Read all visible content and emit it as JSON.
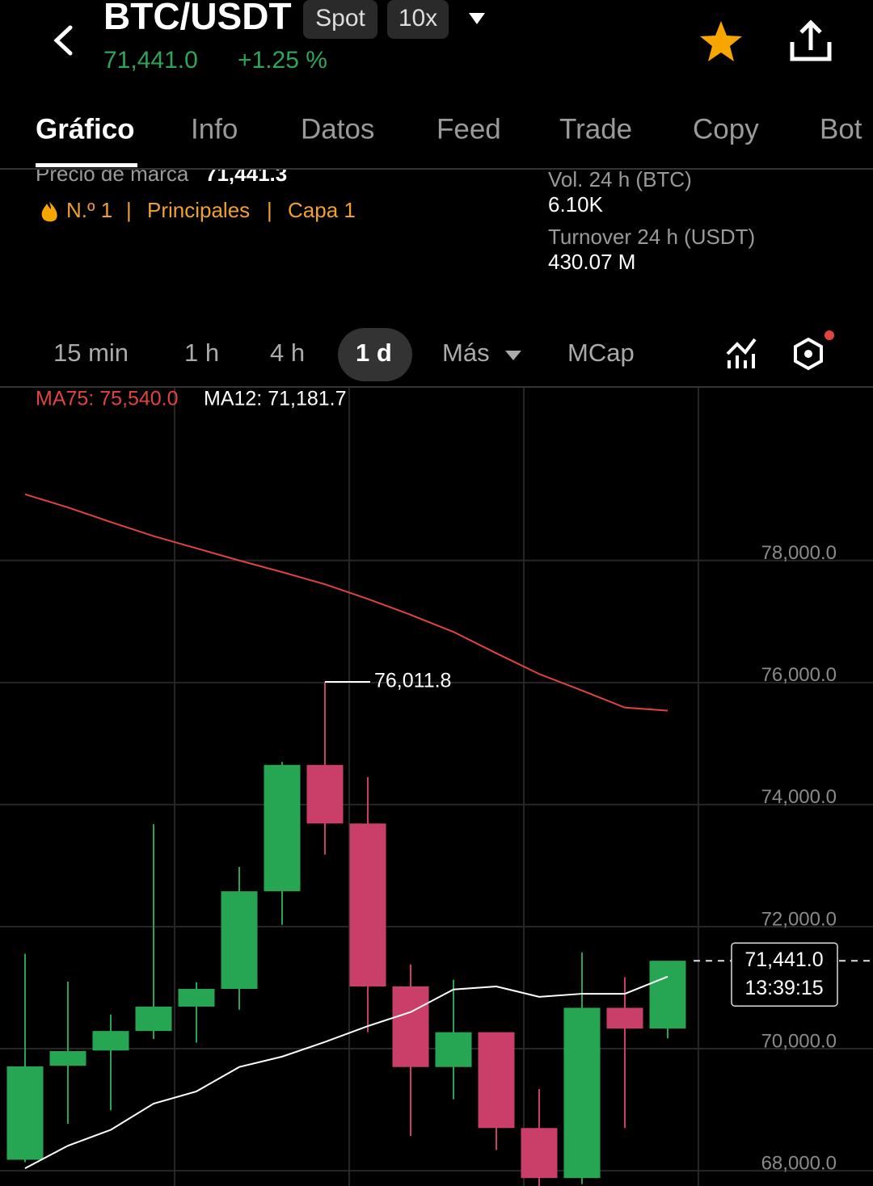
{
  "header": {
    "pair": "BTC/USDT",
    "market": "Spot",
    "leverage": "10x",
    "price": "71,441.0",
    "change": "+1.25 %"
  },
  "tabs": [
    "Gráfico",
    "Info",
    "Datos",
    "Feed",
    "Trade",
    "Copy",
    "Bot"
  ],
  "stats": {
    "mark_label": "Precio de marca",
    "mark_value": "71,441.3",
    "rank": "N.º 1",
    "tags": [
      "Principales",
      "Capa 1"
    ],
    "vol_label": "Vol. 24 h (BTC)",
    "vol_value": "6.10K",
    "turnover_label": "Turnover 24 h (USDT)",
    "turnover_value": "430.07 M"
  },
  "intervals": [
    "15 min",
    "1 h",
    "4 h",
    "1 d",
    "Más",
    "MCap"
  ],
  "chart_data": {
    "type": "candlestick",
    "up_color": "#26a653",
    "down_color": "#c93f69",
    "open": [
      68180,
      69720,
      69970,
      70290,
      70690,
      70980,
      72580,
      74650,
      73690,
      71020,
      69700,
      70270,
      68700,
      67880,
      70670,
      70330
    ],
    "high": [
      71555,
      71100,
      70560,
      73680,
      71090,
      72980,
      74700,
      76011.8,
      74450,
      71380,
      71130,
      70270,
      69340,
      71580,
      71170,
      71370
    ],
    "low": [
      68140,
      68770,
      68990,
      70160,
      70100,
      70640,
      72030,
      73180,
      70270,
      68570,
      69170,
      68340,
      67750,
      67780,
      68700,
      70170
    ],
    "close": [
      69710,
      69960,
      70290,
      70690,
      70980,
      72580,
      74650,
      73690,
      71020,
      69700,
      70270,
      68700,
      67880,
      70670,
      70330,
      71441
    ],
    "lines": [
      {
        "label": "MA75: 75,540.0",
        "color": "#e0443f",
        "values": [
          79085,
          78870,
          78630,
          78400,
          78200,
          78000,
          77810,
          77610,
          77370,
          77110,
          76830,
          76480,
          76140,
          75870,
          75590,
          75540
        ]
      },
      {
        "label": "MA12: 71,181.7",
        "color": "#ffffff",
        "values": [
          68040,
          68410,
          68670,
          69100,
          69300,
          69700,
          69870,
          70110,
          70370,
          70600,
          70970,
          71020,
          70850,
          70900,
          70900,
          71181.7
        ]
      }
    ],
    "high_label": "76,011.8",
    "last_price": {
      "value": 71441,
      "label": "71,441.0"
    },
    "last_time": "13:39:15",
    "ylim": [
      67750,
      80830
    ],
    "yticks": [
      {
        "value": 68000,
        "label": "68,000.0"
      },
      {
        "value": 70000,
        "label": "70,000.0"
      },
      {
        "value": 72000,
        "label": "72,000.0"
      },
      {
        "value": 74000,
        "label": "74,000.0"
      },
      {
        "value": 76000,
        "label": "76,000.0"
      },
      {
        "value": 78000,
        "label": "78,000.0"
      }
    ],
    "grid": true
  }
}
